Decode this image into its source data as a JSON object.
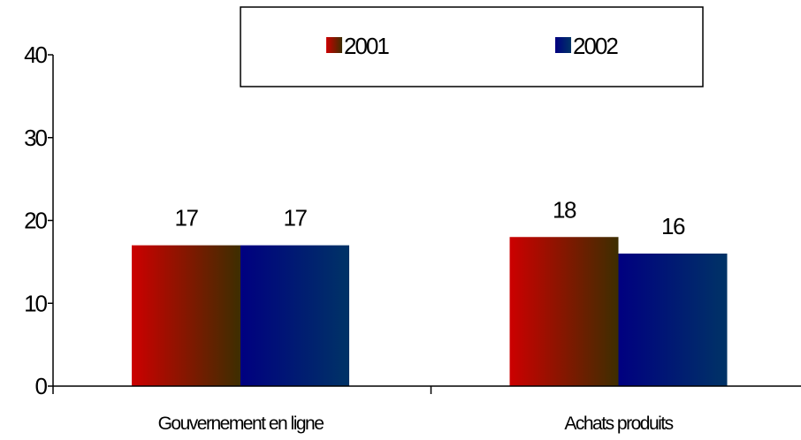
{
  "chart_data": {
    "type": "bar",
    "title": "",
    "xlabel": "",
    "ylabel": "",
    "categories": [
      "Gouvernement en ligne",
      "Achats produits"
    ],
    "series": [
      {
        "name": "2001",
        "values": [
          17,
          18
        ],
        "gradient": [
          "#cc0000",
          "#3d2e00"
        ]
      },
      {
        "name": "2002",
        "values": [
          17,
          16
        ],
        "gradient": [
          "#000080",
          "#003366"
        ]
      }
    ],
    "ylim": [
      0,
      40
    ],
    "yticks": [
      0,
      10,
      20,
      30,
      40
    ],
    "grid": false,
    "legend_position": "top-right",
    "data_labels": true
  }
}
